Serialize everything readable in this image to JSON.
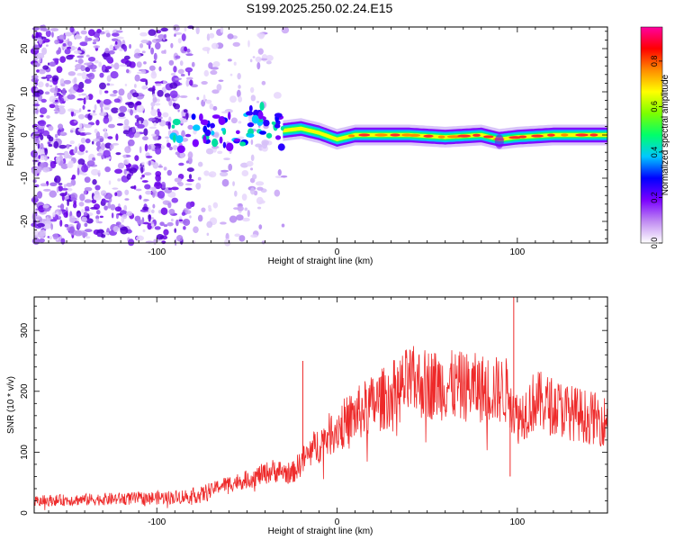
{
  "chart_data": [
    {
      "type": "heatmap",
      "title": "S199.2025.250.02.24.E15",
      "xlabel": "Height of straight line (km)",
      "ylabel": "Frequency (Hz)",
      "xlim": [
        -168,
        150
      ],
      "ylim": [
        -25,
        25
      ],
      "xticks": [
        -100,
        0,
        100
      ],
      "yticks": [
        -20,
        -10,
        0,
        10,
        20
      ],
      "colorbar": {
        "label": "Normalized spectral amplitude",
        "range": [
          0,
          0.95
        ],
        "ticks": [
          0.0,
          0.2,
          0.4,
          0.6,
          0.8
        ],
        "colors": [
          "#ffffff",
          "#c08bf2",
          "#7a00ff",
          "#0000ff",
          "#00c8ff",
          "#00ff6a",
          "#7dff00",
          "#ffff00",
          "#ff8c00",
          "#ff0000",
          "#ff00a0"
        ]
      },
      "ridge": {
        "x": [
          -90,
          -80,
          -70,
          -60,
          -50,
          -40,
          -30,
          -20,
          -10,
          0,
          10,
          20,
          40,
          60,
          80,
          90,
          100,
          120,
          150
        ],
        "frequency": [
          0,
          1,
          2,
          1,
          2,
          3,
          1,
          1.5,
          0.5,
          -1,
          0,
          0,
          0,
          -0.5,
          0,
          -1,
          -0.5,
          0,
          0
        ]
      }
    },
    {
      "type": "line",
      "xlabel": "Height of straight line (km)",
      "ylabel": "SNR (10 * v/v)",
      "xlim": [
        -168,
        150
      ],
      "ylim": [
        0,
        355
      ],
      "xticks": [
        -100,
        0,
        100
      ],
      "yticks": [
        0,
        100,
        200,
        300
      ],
      "color": "#ee2a2a",
      "envelope": {
        "x": [
          -168,
          -140,
          -110,
          -90,
          -75,
          -65,
          -50,
          -35,
          -25,
          -15,
          0,
          15,
          30,
          40,
          60,
          80,
          95,
          100,
          110,
          130,
          150
        ],
        "y": [
          20,
          22,
          24,
          26,
          30,
          45,
          55,
          70,
          65,
          100,
          140,
          170,
          195,
          215,
          210,
          205,
          200,
          155,
          185,
          165,
          150
        ]
      },
      "spikes": [
        {
          "x": -19,
          "y": 250
        },
        {
          "x": 98,
          "y": 355
        },
        {
          "x": 96,
          "y": 60
        }
      ]
    }
  ]
}
